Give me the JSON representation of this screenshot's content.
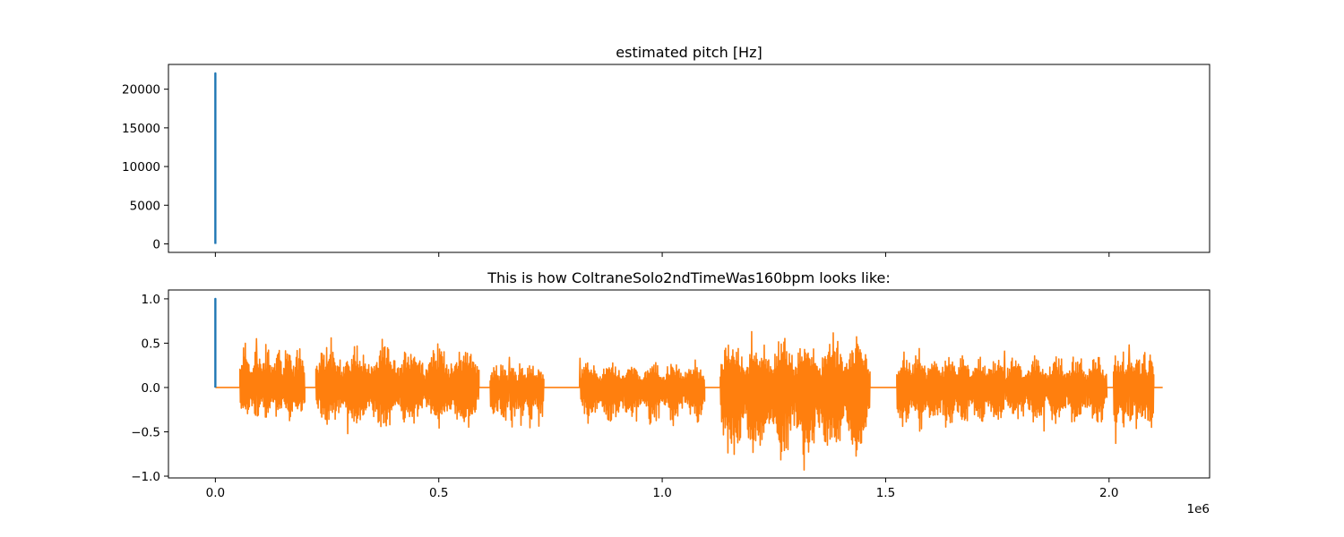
{
  "chart_data": [
    {
      "type": "line",
      "title": "estimated pitch [Hz]",
      "xlabel": "",
      "ylabel": "",
      "xlim": [
        -105000,
        2225000
      ],
      "ylim": [
        -1100,
        23200
      ],
      "grid": false,
      "x_tick_labels_visible": false,
      "x_ticks": [
        0,
        500000,
        1000000,
        1500000,
        2000000
      ],
      "y_ticks": [
        0,
        5000,
        10000,
        15000,
        20000
      ],
      "y_tick_labels": [
        "0",
        "5000",
        "10000",
        "15000",
        "20000"
      ],
      "series": [
        {
          "color": "#1f77b4",
          "x": [
            0,
            0,
            0,
            0,
            0,
            0,
            0,
            0
          ],
          "y": [
            0,
            22050,
            300,
            14800,
            120,
            21900,
            60,
            0
          ]
        }
      ]
    },
    {
      "type": "line",
      "title": "This is how ColtraneSolo2ndTimeWas160bpm looks like:",
      "xlabel": "",
      "ylabel": "",
      "xlim": [
        -105000,
        2225000
      ],
      "ylim": [
        -1.02,
        1.1
      ],
      "grid": false,
      "x_ticks": [
        0,
        500000,
        1000000,
        1500000,
        2000000
      ],
      "x_tick_labels": [
        "0.0",
        "0.5",
        "1.0",
        "1.5",
        "2.0"
      ],
      "x_offset_label": "1e6",
      "y_ticks": [
        -1.0,
        -0.5,
        0.0,
        0.5,
        1.0
      ],
      "y_tick_labels": [
        "−1.0",
        "−0.5",
        "0.0",
        "0.5",
        "1.0"
      ],
      "series": [
        {
          "color": "#1f77b4",
          "x": [
            0,
            0,
            0,
            0,
            0,
            0
          ],
          "y": [
            0.0,
            1.0,
            0.02,
            0.45,
            0.01,
            0.0
          ]
        },
        {
          "color": "#ff7f0e",
          "segments": [
            {
              "start": 0,
              "end": 55000,
              "peak_pos": 0.0,
              "peak_neg": 0.0
            },
            {
              "start": 55000,
              "end": 200000,
              "peak_pos": 0.55,
              "peak_neg": -0.44
            },
            {
              "start": 200000,
              "end": 225000,
              "peak_pos": 0.02,
              "peak_neg": -0.02
            },
            {
              "start": 225000,
              "end": 590000,
              "peak_pos": 0.56,
              "peak_neg": -0.52
            },
            {
              "start": 590000,
              "end": 615000,
              "peak_pos": 0.02,
              "peak_neg": -0.02
            },
            {
              "start": 615000,
              "end": 735000,
              "peak_pos": 0.34,
              "peak_neg": -0.51
            },
            {
              "start": 735000,
              "end": 815000,
              "peak_pos": 0.0,
              "peak_neg": 0.0
            },
            {
              "start": 815000,
              "end": 1095000,
              "peak_pos": 0.33,
              "peak_neg": -0.47
            },
            {
              "start": 1095000,
              "end": 1130000,
              "peak_pos": 0.01,
              "peak_neg": -0.01
            },
            {
              "start": 1130000,
              "end": 1465000,
              "peak_pos": 0.63,
              "peak_neg": -0.93
            },
            {
              "start": 1465000,
              "end": 1525000,
              "peak_pos": 0.01,
              "peak_neg": -0.01
            },
            {
              "start": 1525000,
              "end": 1725000,
              "peak_pos": 0.44,
              "peak_neg": -0.53
            },
            {
              "start": 1725000,
              "end": 1725000,
              "peak_pos": 0.0,
              "peak_neg": 0.0
            },
            {
              "start": 1725000,
              "end": 1995000,
              "peak_pos": 0.41,
              "peak_neg": -0.49
            },
            {
              "start": 1995000,
              "end": 2010000,
              "peak_pos": 0.01,
              "peak_neg": -0.01
            },
            {
              "start": 2010000,
              "end": 2100000,
              "peak_pos": 0.48,
              "peak_neg": -0.63
            },
            {
              "start": 2100000,
              "end": 2120000,
              "peak_pos": 0.01,
              "peak_neg": -0.01
            }
          ]
        }
      ]
    }
  ]
}
